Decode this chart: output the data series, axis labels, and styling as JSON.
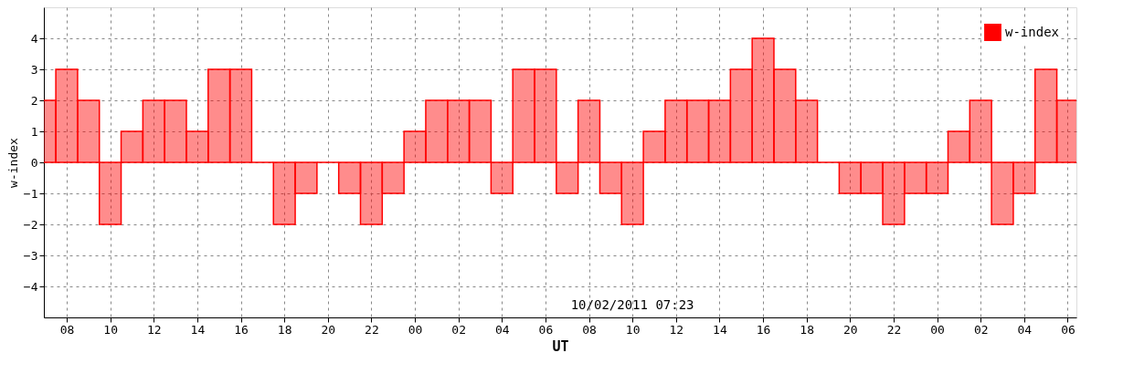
{
  "chart_data": {
    "type": "bar",
    "xlabel": "UT",
    "ylabel": "w-index",
    "x": [
      7,
      8,
      9,
      10,
      11,
      12,
      13,
      14,
      15,
      16,
      17,
      18,
      19,
      20,
      21,
      22,
      23,
      24,
      25,
      26,
      27,
      28,
      29,
      30,
      31,
      32,
      33,
      34,
      35,
      36,
      37,
      38,
      39,
      40,
      41,
      42,
      43,
      44,
      45,
      46,
      47,
      48,
      49,
      50,
      51,
      52,
      53,
      54
    ],
    "series": [
      {
        "name": "w-index",
        "color": "#ff0000",
        "values": [
          2,
          3,
          2,
          -2,
          1,
          2,
          2,
          1,
          3,
          3,
          0,
          -2,
          -1,
          0,
          -1,
          -2,
          -1,
          1,
          2,
          2,
          2,
          -1,
          3,
          3,
          -1,
          2,
          -1,
          -2,
          1,
          2,
          2,
          2,
          3,
          4,
          3,
          2,
          0,
          -1,
          -1,
          -2,
          -1,
          -1,
          1,
          2,
          -2,
          -1,
          3,
          2
        ]
      }
    ],
    "xlim": [
      6.95,
      54.4
    ],
    "xticks": [
      {
        "value": 8,
        "label": "08"
      },
      {
        "value": 10,
        "label": "10"
      },
      {
        "value": 12,
        "label": "12"
      },
      {
        "value": 14,
        "label": "14"
      },
      {
        "value": 16,
        "label": "16"
      },
      {
        "value": 18,
        "label": "18"
      },
      {
        "value": 20,
        "label": "20"
      },
      {
        "value": 22,
        "label": "22"
      },
      {
        "value": 24,
        "label": "00"
      },
      {
        "value": 26,
        "label": "02"
      },
      {
        "value": 28,
        "label": "04"
      },
      {
        "value": 30,
        "label": "06"
      },
      {
        "value": 32,
        "label": "08"
      },
      {
        "value": 34,
        "label": "10"
      },
      {
        "value": 36,
        "label": "12"
      },
      {
        "value": 38,
        "label": "14"
      },
      {
        "value": 40,
        "label": "16"
      },
      {
        "value": 42,
        "label": "18"
      },
      {
        "value": 44,
        "label": "20"
      },
      {
        "value": 46,
        "label": "22"
      },
      {
        "value": 48,
        "label": "00"
      },
      {
        "value": 50,
        "label": "02"
      },
      {
        "value": 52,
        "label": "04"
      },
      {
        "value": 54,
        "label": "06"
      }
    ],
    "ylim": [
      -5,
      5
    ],
    "yticks": [
      -4,
      -3,
      -2,
      -1,
      0,
      1,
      2,
      3,
      4
    ],
    "grid": true,
    "legend": "top right",
    "annotations": [
      "10/02/2011 07:23"
    ]
  }
}
